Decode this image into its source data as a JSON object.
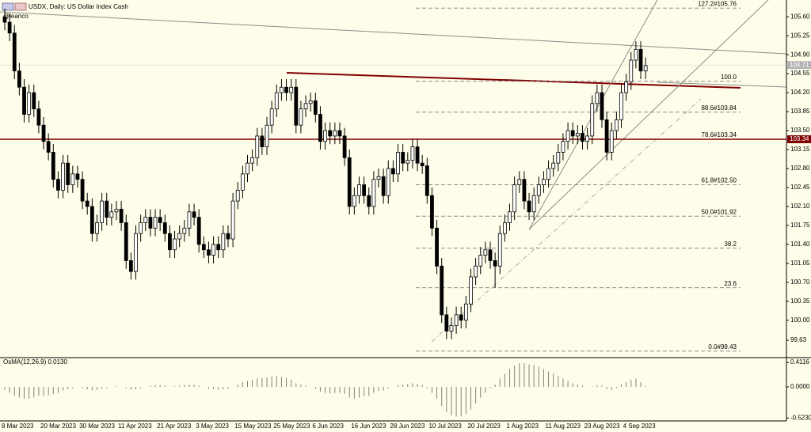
{
  "chart_data": {
    "type": "candlestick",
    "title": "USDX, Daily:  US Dollar Index Cash",
    "subtitle": "@leanco",
    "up_color": "#ffffff",
    "down_color": "#000000",
    "categories": [
      "8 Mar 2023",
      null,
      null,
      null,
      null,
      null,
      null,
      null,
      "20 Mar 2023",
      null,
      null,
      null,
      null,
      null,
      null,
      null,
      "30 Mar 2023",
      null,
      null,
      null,
      null,
      null,
      null,
      null,
      "11 Apr 2023",
      null,
      null,
      null,
      null,
      null,
      null,
      null,
      "21 Apr 2023",
      null,
      null,
      null,
      null,
      null,
      null,
      null,
      "3 May 2023",
      null,
      null,
      null,
      null,
      null,
      null,
      null,
      "15 May 2023",
      null,
      null,
      null,
      null,
      null,
      null,
      null,
      "25 May 2023",
      null,
      null,
      null,
      null,
      null,
      null,
      null,
      "6 Jun 2023",
      null,
      null,
      null,
      null,
      null,
      null,
      null,
      "16 Jun 2023",
      null,
      null,
      null,
      null,
      null,
      null,
      null,
      "28 Jun 2023",
      null,
      null,
      null,
      null,
      null,
      null,
      null,
      "10 Jul 2023",
      null,
      null,
      null,
      null,
      null,
      null,
      null,
      "20 Jul 2023",
      null,
      null,
      null,
      null,
      null,
      null,
      null,
      "1 Aug 2023",
      null,
      null,
      null,
      null,
      null,
      null,
      null,
      "11 Aug 2023",
      null,
      null,
      null,
      null,
      null,
      null,
      null,
      "23 Aug 2023",
      null,
      null,
      null,
      null,
      null,
      null,
      null,
      "4 Sep 2023",
      null,
      null,
      null,
      null
    ],
    "open": [
      105.6,
      105.5,
      105.3,
      104.6,
      104.3,
      103.8,
      104.2,
      103.9,
      103.6,
      103.3,
      103.1,
      102.6,
      102.4,
      102.9,
      102.5,
      102.7,
      102.6,
      102.2,
      102.1,
      101.6,
      101.8,
      102.2,
      101.9,
      102.0,
      102.05,
      101.8,
      101.1,
      100.9,
      101.6,
      101.8,
      101.9,
      101.7,
      101.9,
      101.8,
      101.6,
      101.3,
      101.5,
      101.6,
      101.7,
      102.0,
      101.9,
      101.4,
      101.3,
      101.2,
      101.4,
      101.3,
      101.6,
      101.5,
      102.2,
      102.4,
      102.7,
      102.9,
      103.0,
      103.4,
      103.2,
      103.6,
      103.9,
      104.2,
      104.3,
      104.2,
      104.3,
      103.6,
      103.9,
      104.0,
      104.05,
      103.8,
      103.3,
      103.5,
      103.4,
      103.5,
      103.4,
      103.0,
      102.1,
      102.3,
      102.5,
      102.3,
      102.1,
      102.6,
      102.65,
      102.3,
      102.8,
      102.7,
      103.1,
      102.9,
      102.95,
      103.2,
      102.9,
      102.85,
      102.3,
      101.7,
      101.0,
      100.1,
      99.8,
      99.9,
      100.1,
      100.0,
      100.3,
      100.8,
      101.0,
      101.2,
      101.3,
      101.1,
      101.0,
      101.6,
      101.8,
      102.0,
      102.5,
      102.6,
      102.2,
      102.0,
      102.3,
      102.5,
      102.6,
      102.8,
      102.9,
      103.1,
      103.3,
      103.5,
      103.4,
      103.45,
      103.3,
      103.4,
      104.0,
      104.2,
      103.7,
      103.1,
      103.5,
      103.7,
      104.2,
      104.4,
      104.8,
      105.0,
      104.6
    ],
    "high": [
      105.75,
      105.65,
      105.45,
      104.75,
      104.45,
      104.35,
      104.35,
      104.05,
      103.75,
      103.45,
      103.25,
      102.75,
      103.05,
      103.05,
      102.85,
      102.85,
      102.75,
      102.35,
      102.25,
      101.95,
      102.35,
      102.35,
      102.15,
      102.2,
      102.2,
      101.95,
      101.25,
      101.75,
      101.95,
      102.05,
      102.05,
      102.05,
      102.05,
      101.95,
      101.75,
      101.65,
      101.75,
      101.85,
      102.15,
      102.15,
      102.05,
      101.55,
      101.45,
      101.55,
      101.55,
      101.75,
      101.75,
      102.35,
      102.55,
      102.85,
      103.05,
      103.15,
      103.55,
      103.55,
      103.75,
      104.05,
      104.35,
      104.45,
      104.45,
      104.45,
      104.45,
      104.05,
      104.15,
      104.2,
      104.2,
      103.95,
      103.65,
      103.65,
      103.65,
      103.65,
      103.55,
      103.15,
      102.45,
      102.65,
      102.65,
      102.45,
      102.75,
      102.8,
      102.8,
      102.95,
      102.95,
      103.25,
      103.25,
      103.1,
      103.35,
      103.35,
      103.05,
      103.0,
      102.45,
      101.85,
      101.15,
      100.25,
      100.05,
      100.25,
      100.25,
      100.45,
      100.95,
      101.15,
      101.35,
      101.45,
      101.45,
      101.25,
      101.75,
      101.95,
      102.15,
      102.65,
      102.75,
      102.75,
      102.35,
      102.45,
      102.65,
      102.75,
      102.95,
      103.05,
      103.25,
      103.45,
      103.65,
      103.65,
      103.6,
      103.6,
      103.55,
      104.15,
      104.35,
      104.35,
      103.85,
      103.65,
      103.85,
      104.35,
      104.55,
      104.95,
      105.15,
      105.15,
      104.85
    ],
    "low": [
      105.35,
      105.15,
      104.45,
      104.15,
      103.65,
      103.65,
      103.75,
      103.45,
      103.15,
      102.95,
      102.45,
      102.25,
      102.25,
      102.35,
      102.35,
      102.45,
      102.05,
      101.95,
      101.45,
      101.45,
      101.65,
      101.75,
      101.75,
      101.85,
      101.65,
      100.95,
      100.75,
      100.75,
      101.45,
      101.65,
      101.55,
      101.55,
      101.65,
      101.45,
      101.15,
      101.15,
      101.35,
      101.45,
      101.55,
      101.75,
      101.25,
      101.15,
      101.05,
      101.05,
      101.15,
      101.15,
      101.35,
      101.35,
      102.05,
      102.25,
      102.55,
      102.75,
      102.85,
      103.05,
      103.05,
      103.45,
      103.75,
      104.05,
      104.05,
      104.05,
      103.45,
      103.45,
      103.75,
      103.85,
      103.65,
      103.15,
      103.15,
      103.25,
      103.25,
      103.25,
      102.85,
      101.95,
      101.95,
      102.15,
      102.15,
      101.95,
      101.95,
      102.45,
      102.15,
      102.15,
      102.55,
      102.55,
      102.75,
      102.75,
      102.8,
      102.75,
      102.7,
      102.15,
      101.55,
      100.85,
      99.95,
      99.65,
      99.65,
      99.75,
      99.85,
      99.85,
      100.15,
      100.65,
      100.85,
      101.05,
      100.95,
      100.6,
      100.85,
      101.45,
      101.65,
      101.85,
      102.35,
      102.05,
      101.85,
      101.85,
      102.15,
      102.35,
      102.45,
      102.65,
      102.75,
      102.95,
      103.15,
      103.25,
      103.25,
      103.15,
      103.15,
      103.25,
      103.85,
      103.55,
      102.95,
      102.95,
      103.35,
      103.55,
      104.05,
      104.25,
      104.65,
      104.45,
      104.45
    ],
    "close": [
      105.5,
      105.3,
      104.6,
      104.3,
      103.8,
      104.2,
      103.9,
      103.6,
      103.3,
      103.1,
      102.6,
      102.4,
      102.9,
      102.5,
      102.7,
      102.6,
      102.2,
      102.1,
      101.6,
      101.8,
      102.2,
      101.9,
      102.0,
      102.05,
      101.8,
      101.1,
      100.9,
      101.6,
      101.8,
      101.9,
      101.7,
      101.9,
      101.8,
      101.6,
      101.3,
      101.5,
      101.6,
      101.7,
      102.0,
      101.9,
      101.4,
      101.3,
      101.2,
      101.4,
      101.3,
      101.6,
      101.5,
      102.2,
      102.4,
      102.7,
      102.9,
      103.0,
      103.4,
      103.2,
      103.6,
      103.9,
      104.2,
      104.3,
      104.2,
      104.3,
      103.6,
      103.9,
      104.0,
      104.05,
      103.8,
      103.3,
      103.5,
      103.4,
      103.5,
      103.4,
      103.0,
      102.1,
      102.3,
      102.5,
      102.3,
      102.1,
      102.6,
      102.65,
      102.3,
      102.8,
      102.7,
      103.1,
      102.9,
      102.95,
      103.2,
      102.9,
      102.85,
      102.3,
      101.7,
      101.0,
      100.1,
      99.8,
      99.9,
      100.1,
      100.0,
      100.3,
      100.8,
      101.0,
      101.2,
      101.3,
      101.1,
      101.0,
      101.6,
      101.8,
      102.0,
      102.5,
      102.6,
      102.2,
      102.0,
      102.3,
      102.5,
      102.6,
      102.8,
      102.9,
      103.1,
      103.3,
      103.5,
      103.4,
      103.45,
      103.3,
      103.4,
      104.0,
      104.2,
      103.7,
      103.1,
      103.5,
      103.7,
      104.2,
      104.4,
      104.8,
      105.0,
      104.6,
      104.7
    ],
    "ylim": [
      99.31,
      105.91
    ],
    "yticks": [
      {
        "value": 105.6,
        "label": "105.60"
      },
      105.25,
      {
        "value": 104.9,
        "label": "104.90"
      },
      104.55,
      {
        "value": 104.2,
        "label": "104.20"
      },
      103.85,
      {
        "value": 103.5,
        "label": "103.50"
      },
      103.15,
      {
        "value": 102.8,
        "label": "102.80"
      },
      102.45,
      {
        "value": 102.1,
        "label": "102.10"
      },
      101.75,
      {
        "value": 101.4,
        "label": "101.40"
      },
      101.05,
      {
        "value": 100.7,
        "label": "100.70"
      },
      100.35,
      {
        "value": 100,
        "label": "100.00"
      },
      99.63
    ],
    "last_price": 104.71,
    "last_price_color": "#b4b4b4",
    "level": 103.34,
    "level_color": "#800000",
    "fib_color": "#8c8c8c",
    "fib_levels": [
      {
        "label": "127.2#105.76",
        "value": 105.76
      },
      {
        "label": "100.0",
        "value": 104.41
      },
      {
        "label": "88.6#103.84",
        "value": 103.84
      },
      {
        "label": "78.6#103.34",
        "value": 103.34
      },
      {
        "label": "61.8#102.50",
        "value": 102.5
      },
      {
        "label": "50.0#101.92",
        "value": 101.92
      },
      {
        "label": "38.2",
        "value": 101.33
      },
      {
        "label": "23.6",
        "value": 100.6
      },
      {
        "label": "0.0#99.43",
        "value": 99.43
      }
    ],
    "indicator": {
      "label": "OsMA(12,26,9) 0.0130",
      "color": "#808080",
      "ylim": [
        -0.573,
        0.493
      ],
      "yticks": [
        0.4116,
        {
          "value": 0,
          "label": "0.0000"
        },
        {
          "value": -0.523,
          "label": "-0.5230"
        }
      ],
      "values": [
        -0.05,
        -0.1,
        -0.15,
        -0.18,
        -0.2,
        -0.2,
        -0.18,
        -0.15,
        -0.15,
        -0.14,
        -0.12,
        -0.1,
        -0.06,
        -0.04,
        -0.02,
        0.0,
        -0.02,
        -0.04,
        -0.06,
        -0.05,
        -0.03,
        -0.02,
        0.0,
        0.01,
        0.0,
        -0.02,
        -0.05,
        -0.04,
        -0.02,
        0.0,
        0.02,
        0.03,
        0.03,
        0.02,
        0.0,
        0.01,
        0.02,
        0.03,
        0.04,
        0.04,
        0.02,
        0.0,
        -0.03,
        -0.04,
        -0.05,
        -0.04,
        -0.03,
        0.0,
        0.04,
        0.08,
        0.1,
        0.12,
        0.14,
        0.15,
        0.16,
        0.18,
        0.18,
        0.17,
        0.15,
        0.12,
        0.06,
        0.04,
        0.02,
        0.0,
        -0.03,
        -0.08,
        -0.1,
        -0.11,
        -0.1,
        -0.1,
        -0.12,
        -0.18,
        -0.2,
        -0.18,
        -0.16,
        -0.15,
        -0.1,
        -0.07,
        -0.06,
        -0.02,
        0.0,
        0.03,
        0.04,
        0.05,
        0.06,
        0.05,
        0.03,
        -0.02,
        -0.1,
        -0.2,
        -0.32,
        -0.42,
        -0.48,
        -0.5,
        -0.5,
        -0.46,
        -0.38,
        -0.28,
        -0.18,
        -0.1,
        -0.02,
        0.04,
        0.14,
        0.22,
        0.3,
        0.36,
        0.4,
        0.4,
        0.38,
        0.37,
        0.34,
        0.3,
        0.26,
        0.22,
        0.18,
        0.14,
        0.1,
        0.06,
        0.04,
        0.02,
        0.0,
        0.01,
        0.03,
        0.02,
        -0.04,
        -0.05,
        -0.02,
        0.04,
        0.08,
        0.12,
        0.14,
        0.08,
        0.013
      ]
    }
  }
}
